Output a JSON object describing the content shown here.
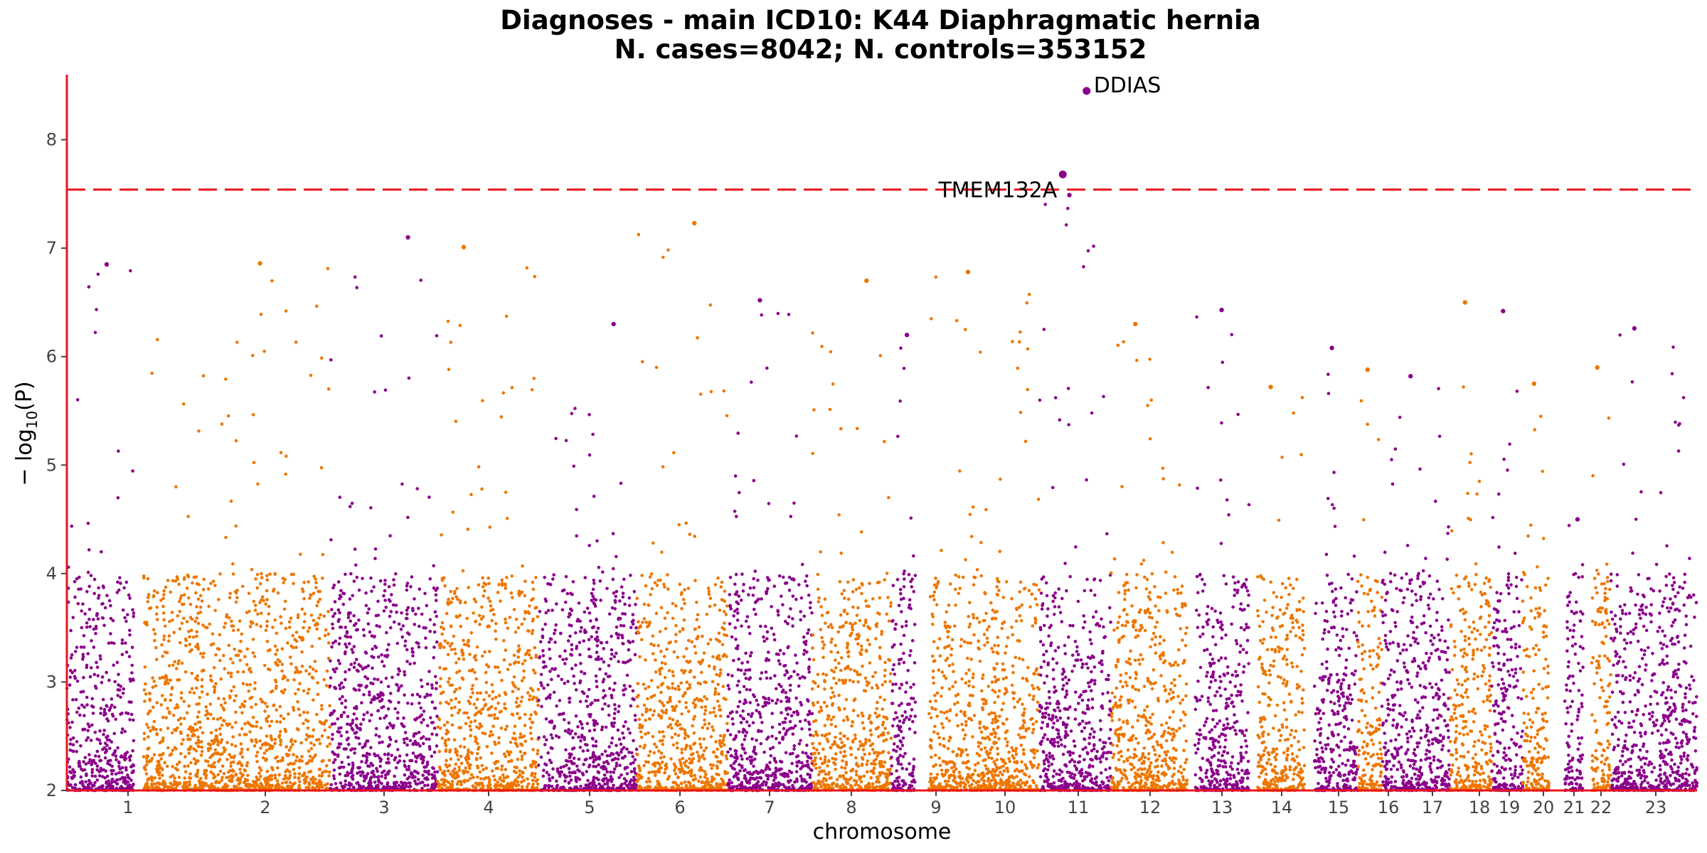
{
  "chart_data": {
    "type": "scatter",
    "subtype": "manhattan",
    "title": "Diagnoses - main ICD10: K44 Diaphragmatic hernia",
    "subtitle": "N. cases=8042; N. controls=353152",
    "xlabel": "chromosome",
    "ylabel_prefix": "− log",
    "ylabel_sub": "10",
    "ylabel_suffix": "(P)",
    "ylim": [
      2,
      8.6
    ],
    "yticks": [
      "2",
      "3",
      "4",
      "5",
      "6",
      "7",
      "8"
    ],
    "significance_threshold": 7.54,
    "colors": {
      "odd": "#8B008B",
      "even": "#EE7600",
      "threshold": "#E8141E",
      "axis": "#E8141E"
    },
    "chromosomes": [
      {
        "label": "1",
        "bands": 2,
        "max": 6.85
      },
      {
        "label": "2",
        "bands": 2,
        "max": 6.86
      },
      {
        "label": "3",
        "bands": 2,
        "max": 7.1
      },
      {
        "label": "4",
        "bands": 2,
        "max": 7.01
      },
      {
        "label": "5",
        "bands": 2,
        "max": 6.3
      },
      {
        "label": "6",
        "bands": 2,
        "max": 7.23
      },
      {
        "label": "7",
        "bands": 2,
        "max": 6.52
      },
      {
        "label": "8",
        "bands": 2,
        "max": 6.7
      },
      {
        "label": "9",
        "bands": 2,
        "max": 6.2
      },
      {
        "label": "10",
        "bands": 2,
        "max": 6.78
      },
      {
        "label": "11",
        "bands": 2,
        "max": 7.49
      },
      {
        "label": "12",
        "bands": 2,
        "max": 6.3
      },
      {
        "label": "13",
        "bands": 2,
        "max": 6.43
      },
      {
        "label": "14",
        "bands": 2,
        "max": 5.72
      },
      {
        "label": "15",
        "bands": 2,
        "max": 6.08
      },
      {
        "label": "16",
        "bands": 2,
        "max": 5.88
      },
      {
        "label": "17",
        "bands": 2,
        "max": 5.82
      },
      {
        "label": "18",
        "bands": 2,
        "max": 6.5
      },
      {
        "label": "19",
        "bands": 2,
        "max": 6.42
      },
      {
        "label": "20",
        "bands": 1,
        "max": 5.75
      },
      {
        "label": "21",
        "bands": 1,
        "max": 4.5
      },
      {
        "label": "22",
        "bands": 1,
        "max": 5.9
      },
      {
        "label": "23",
        "bands": 2,
        "max": 6.26
      }
    ],
    "highlights": [
      {
        "gene": "DDIAS",
        "chromosome": "11",
        "position": 0.66,
        "value": 8.45
      },
      {
        "gene": "TMEM132A",
        "chromosome": "11",
        "position": 0.33,
        "value": 7.68
      }
    ]
  }
}
